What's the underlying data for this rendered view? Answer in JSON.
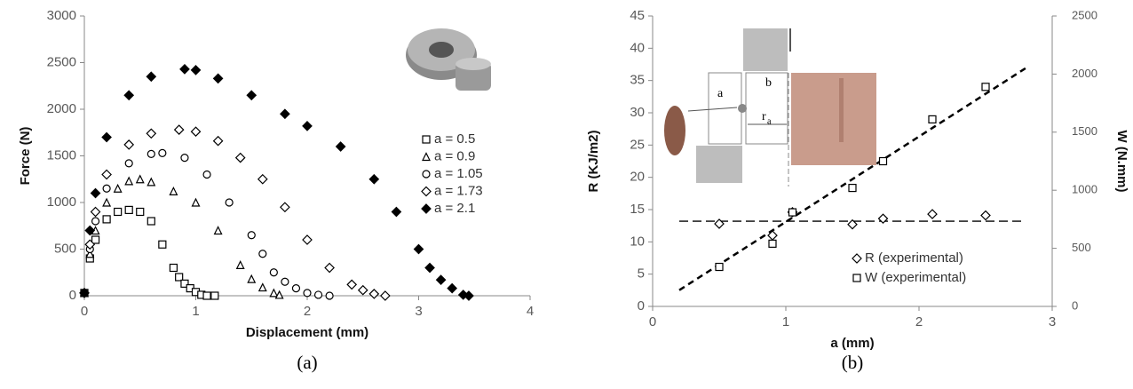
{
  "chart_data": [
    {
      "type": "scatter",
      "xlabel": "Displacement (mm)",
      "ylabel": "Force (N)",
      "caption": "(a)",
      "xlim": [
        0,
        4
      ],
      "xticks": [
        0,
        1,
        2,
        3,
        4
      ],
      "ylim": [
        0,
        3000
      ],
      "yticks": [
        0,
        500,
        1000,
        1500,
        2000,
        2500,
        3000
      ],
      "series": [
        {
          "name": "a = 0.5",
          "marker": "square",
          "color": "#000000",
          "x": [
            0,
            0.05,
            0.1,
            0.2,
            0.3,
            0.4,
            0.5,
            0.6,
            0.7,
            0.8,
            0.85,
            0.9,
            0.95,
            1.0,
            1.05,
            1.1,
            1.17
          ],
          "values": [
            30,
            400,
            600,
            820,
            900,
            920,
            900,
            800,
            550,
            300,
            200,
            130,
            80,
            40,
            10,
            0,
            0
          ]
        },
        {
          "name": "a = 0.9",
          "marker": "triangle",
          "color": "#000000",
          "x": [
            0,
            0.05,
            0.1,
            0.2,
            0.3,
            0.4,
            0.5,
            0.6,
            0.8,
            1.0,
            1.2,
            1.4,
            1.5,
            1.6,
            1.7,
            1.75
          ],
          "values": [
            30,
            450,
            700,
            1000,
            1150,
            1230,
            1250,
            1220,
            1120,
            1000,
            700,
            330,
            180,
            90,
            30,
            10
          ]
        },
        {
          "name": "a = 1.05",
          "marker": "circle",
          "color": "#000000",
          "x": [
            0,
            0.05,
            0.1,
            0.2,
            0.4,
            0.6,
            0.7,
            0.9,
            1.1,
            1.3,
            1.5,
            1.6,
            1.7,
            1.8,
            1.9,
            2.0,
            2.1,
            2.2
          ],
          "values": [
            30,
            500,
            800,
            1150,
            1420,
            1520,
            1530,
            1480,
            1300,
            1000,
            650,
            450,
            250,
            150,
            80,
            30,
            10,
            0
          ]
        },
        {
          "name": "a = 1.73",
          "marker": "diamond",
          "color": "#000000",
          "x": [
            0,
            0.05,
            0.1,
            0.2,
            0.4,
            0.6,
            0.85,
            1.0,
            1.2,
            1.4,
            1.6,
            1.8,
            2.0,
            2.2,
            2.4,
            2.5,
            2.6,
            2.7
          ],
          "values": [
            30,
            550,
            900,
            1300,
            1620,
            1740,
            1780,
            1760,
            1660,
            1480,
            1250,
            950,
            600,
            300,
            120,
            60,
            20,
            0
          ]
        },
        {
          "name": "a = 2.1",
          "marker": "diamond-filled",
          "color": "#000000",
          "x": [
            0,
            0.05,
            0.1,
            0.2,
            0.4,
            0.6,
            0.9,
            1.0,
            1.2,
            1.5,
            1.8,
            2.0,
            2.3,
            2.6,
            2.8,
            3.0,
            3.1,
            3.2,
            3.3,
            3.4,
            3.45
          ],
          "values": [
            30,
            700,
            1100,
            1700,
            2150,
            2350,
            2430,
            2420,
            2330,
            2150,
            1950,
            1820,
            1600,
            1250,
            900,
            500,
            300,
            170,
            80,
            10,
            0
          ]
        }
      ]
    },
    {
      "type": "scatter",
      "xlabel": "a (mm)",
      "ylabel": "R (KJ/m2)",
      "y2label": "W (N.mm)",
      "caption": "(b)",
      "xlim": [
        0,
        3
      ],
      "xticks": [
        0,
        1,
        2,
        3
      ],
      "ylim": [
        0,
        45
      ],
      "yticks": [
        0,
        5,
        10,
        15,
        20,
        25,
        30,
        35,
        40,
        45
      ],
      "y2lim": [
        0,
        2500
      ],
      "y2ticks": [
        0,
        500,
        1000,
        1500,
        2000,
        2500
      ],
      "inset_labels": [
        "a",
        "b",
        "r",
        "a"
      ],
      "series": [
        {
          "name": "R (experimental)",
          "marker": "diamond",
          "color": "#000000",
          "x": [
            0.5,
            0.9,
            1.05,
            1.5,
            1.73,
            2.1,
            2.5
          ],
          "values": [
            12.8,
            11,
            14.6,
            12.7,
            13.6,
            14.3,
            14.1
          ]
        },
        {
          "name": "W (experimental)",
          "marker": "square",
          "color": "#000000",
          "axis": "y2",
          "x": [
            0.5,
            0.9,
            1.05,
            1.5,
            1.73,
            2.1,
            2.5
          ],
          "values": [
            340,
            540,
            810,
            1020,
            1250,
            1610,
            1890
          ]
        }
      ],
      "trendlines": [
        {
          "axis": "y",
          "x": [
            0.2,
            2.8
          ],
          "values": [
            13.2,
            13.2
          ]
        },
        {
          "axis": "y2",
          "x": [
            0.2,
            2.8
          ],
          "values": [
            140,
            2050
          ]
        }
      ]
    }
  ]
}
